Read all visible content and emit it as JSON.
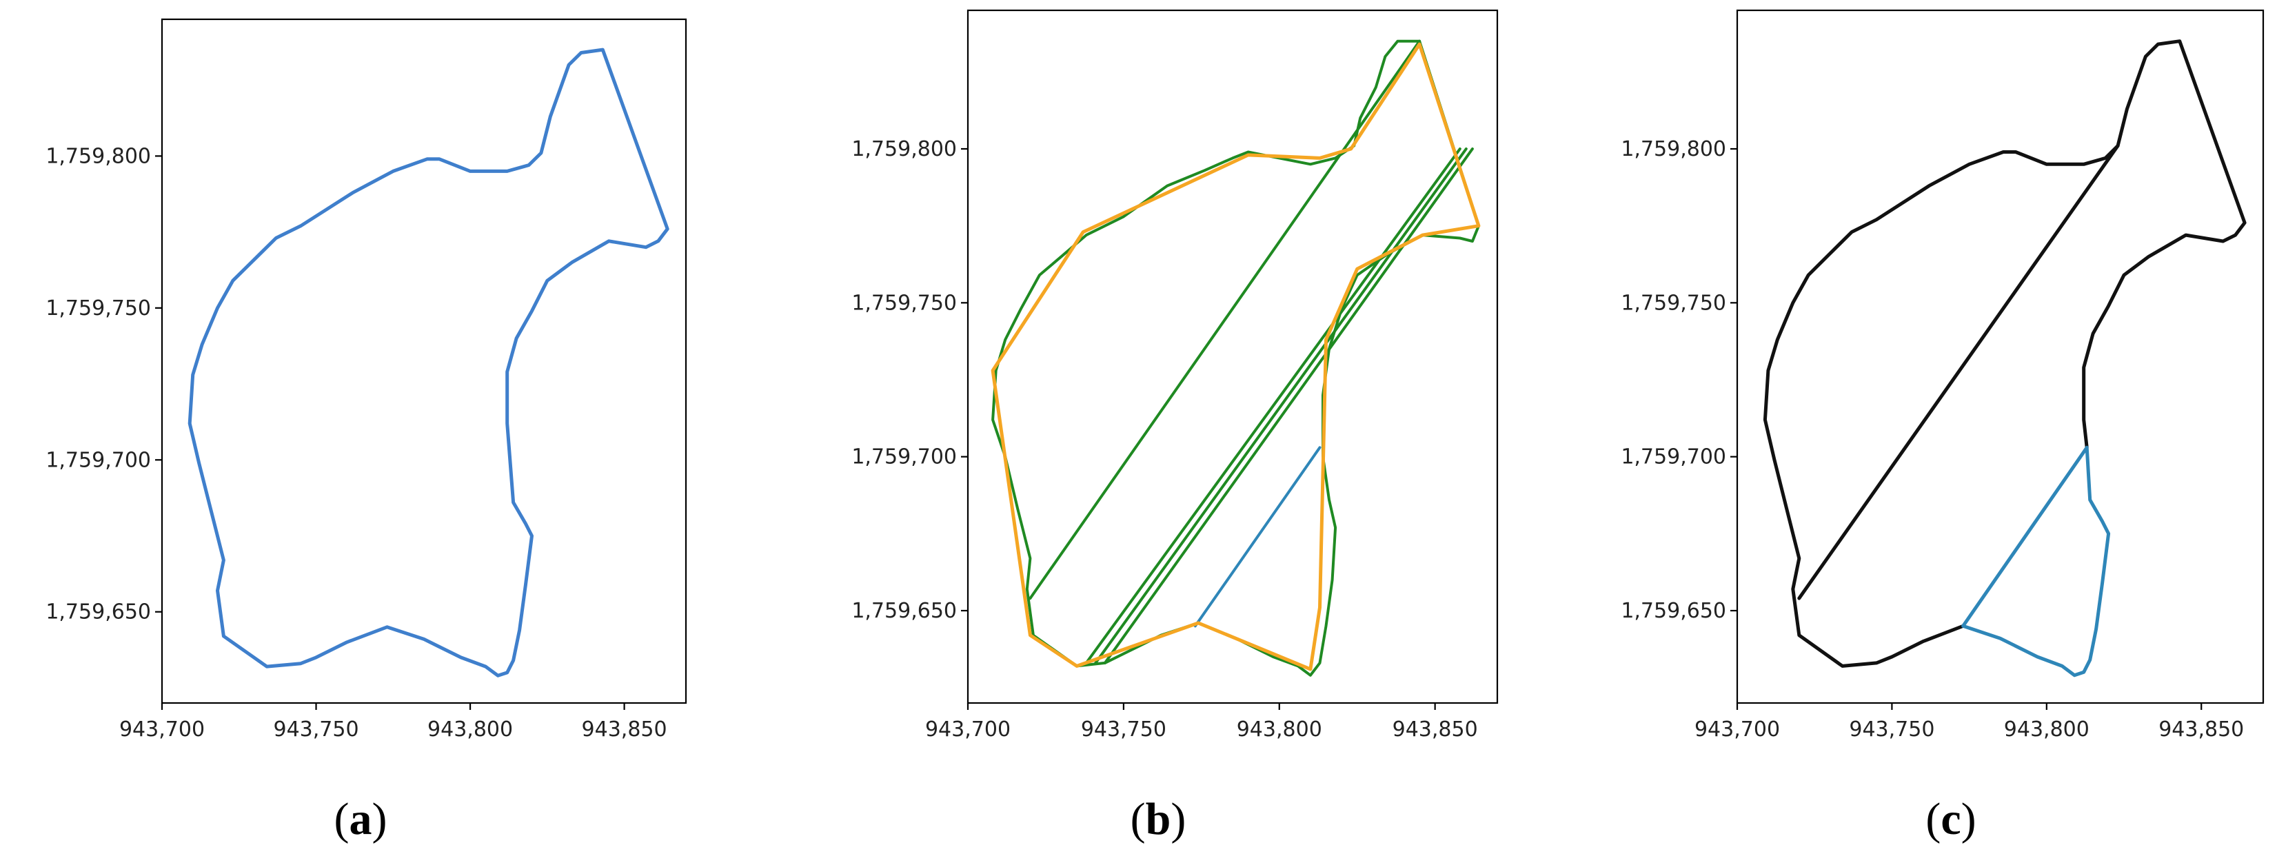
{
  "chart_data": [
    {
      "type": "line",
      "panel_label": "a",
      "xlim": [
        943700,
        943870
      ],
      "ylim": [
        1759620,
        1759845
      ],
      "x_ticks": [
        943700,
        943750,
        943800,
        943850
      ],
      "y_ticks": [
        1759650,
        1759700,
        1759750,
        1759800
      ],
      "x_tick_labels": [
        "943,700",
        "943,750",
        "943,800",
        "943,850"
      ],
      "y_tick_labels": [
        "1,759,650",
        "1,759,700",
        "1,759,750",
        "1,759,800"
      ],
      "series": [
        {
          "color": "#3f7fcc",
          "width": 5,
          "points": [
            [
              943843,
              1759835
            ],
            [
              943836,
              1759834
            ],
            [
              943832,
              1759830
            ],
            [
              943826,
              1759813
            ],
            [
              943823,
              1759801
            ],
            [
              943819,
              1759797
            ],
            [
              943812,
              1759795
            ],
            [
              943800,
              1759795
            ],
            [
              943790,
              1759799
            ],
            [
              943786,
              1759799
            ],
            [
              943775,
              1759795
            ],
            [
              943762,
              1759788
            ],
            [
              943745,
              1759777
            ],
            [
              943737,
              1759773
            ],
            [
              943730,
              1759766
            ],
            [
              943723,
              1759759
            ],
            [
              943718,
              1759750
            ],
            [
              943713,
              1759738
            ],
            [
              943710,
              1759728
            ],
            [
              943709,
              1759712
            ],
            [
              943712,
              1759699
            ],
            [
              943716,
              1759683
            ],
            [
              943720,
              1759667
            ],
            [
              943718,
              1759657
            ],
            [
              943720,
              1759642
            ],
            [
              943734,
              1759632
            ],
            [
              943745,
              1759633
            ],
            [
              943750,
              1759635
            ],
            [
              943760,
              1759640
            ],
            [
              943773,
              1759645
            ],
            [
              943785,
              1759641
            ],
            [
              943797,
              1759635
            ],
            [
              943805,
              1759632
            ],
            [
              943809,
              1759629
            ],
            [
              943812,
              1759630
            ],
            [
              943814,
              1759634
            ],
            [
              943816,
              1759644
            ],
            [
              943818,
              1759659
            ],
            [
              943820,
              1759675
            ],
            [
              943818,
              1759679
            ],
            [
              943814,
              1759686
            ],
            [
              943812,
              1759712
            ],
            [
              943812,
              1759729
            ],
            [
              943815,
              1759740
            ],
            [
              943820,
              1759749
            ],
            [
              943825,
              1759759
            ],
            [
              943833,
              1759765
            ],
            [
              943845,
              1759772
            ],
            [
              943857,
              1759770
            ],
            [
              943861,
              1759772
            ],
            [
              943864,
              1759776
            ],
            [
              943843,
              1759835
            ]
          ]
        }
      ]
    },
    {
      "type": "line",
      "panel_label": "b",
      "xlim": [
        943700,
        943870
      ],
      "ylim": [
        1759620,
        1759845
      ],
      "x_ticks": [
        943700,
        943750,
        943800,
        943850
      ],
      "y_ticks": [
        1759650,
        1759700,
        1759750,
        1759800
      ],
      "x_tick_labels": [
        "943,700",
        "943,750",
        "943,800",
        "943,850"
      ],
      "y_tick_labels": [
        "1,759,650",
        "1,759,700",
        "1,759,750",
        "1,759,800"
      ],
      "series": [
        {
          "color": "#1f8a22",
          "width": 4,
          "points": [
            [
              943845,
              1759835
            ],
            [
              943838,
              1759835
            ],
            [
              943834,
              1759830
            ],
            [
              943831,
              1759820
            ],
            [
              943826,
              1759810
            ],
            [
              943824,
              1759801
            ],
            [
              943818,
              1759797
            ],
            [
              943810,
              1759795
            ],
            [
              943800,
              1759797
            ],
            [
              943790,
              1759799
            ],
            [
              943785,
              1759797
            ],
            [
              943776,
              1759793
            ],
            [
              943764,
              1759788
            ],
            [
              943750,
              1759778
            ],
            [
              943738,
              1759772
            ],
            [
              943730,
              1759765
            ],
            [
              943723,
              1759759
            ],
            [
              943717,
              1759748
            ],
            [
              943712,
              1759738
            ],
            [
              943709,
              1759728
            ],
            [
              943708,
              1759712
            ],
            [
              943712,
              1759700
            ],
            [
              943716,
              1759683
            ],
            [
              943720,
              1759667
            ],
            [
              943719,
              1759657
            ],
            [
              943721,
              1759642
            ],
            [
              943735,
              1759632
            ],
            [
              943744,
              1759633
            ],
            [
              943752,
              1759637
            ],
            [
              943762,
              1759642
            ],
            [
              943774,
              1759646
            ],
            [
              943786,
              1759641
            ],
            [
              943798,
              1759635
            ],
            [
              943806,
              1759632
            ],
            [
              943810,
              1759629
            ],
            [
              943813,
              1759633
            ],
            [
              943815,
              1759645
            ],
            [
              943817,
              1759660
            ],
            [
              943818,
              1759677
            ],
            [
              943816,
              1759686
            ],
            [
              943814,
              1759700
            ],
            [
              943814,
              1759720
            ],
            [
              943816,
              1759735
            ],
            [
              943820,
              1759748
            ],
            [
              943825,
              1759759
            ],
            [
              943835,
              1759766
            ],
            [
              943846,
              1759772
            ],
            [
              943858,
              1759771
            ],
            [
              943862,
              1759770
            ],
            [
              943864,
              1759775
            ],
            [
              943845,
              1759835
            ]
          ]
        },
        {
          "color": "#1f8a22",
          "width": 4,
          "points": [
            [
              943720,
              1759654
            ],
            [
              943845,
              1759835
            ]
          ]
        },
        {
          "color": "#1f8a22",
          "width": 4,
          "points": [
            [
              943738,
              1759633
            ],
            [
              943858,
              1759800
            ]
          ]
        },
        {
          "color": "#1f8a22",
          "width": 4,
          "points": [
            [
              943741,
              1759633
            ],
            [
              943860,
              1759800
            ]
          ]
        },
        {
          "color": "#1f8a22",
          "width": 4,
          "points": [
            [
              943744,
              1759633
            ],
            [
              943862,
              1759800
            ]
          ]
        },
        {
          "color": "#2e86b8",
          "width": 4,
          "points": [
            [
              943773,
              1759645
            ],
            [
              943813,
              1759703
            ]
          ]
        },
        {
          "color": "#f5a623",
          "width": 5,
          "points": [
            [
              943845,
              1759834
            ],
            [
              943823,
              1759800
            ],
            [
              943813,
              1759797
            ],
            [
              943790,
              1759798
            ],
            [
              943737,
              1759773
            ],
            [
              943708,
              1759728
            ],
            [
              943720,
              1759642
            ],
            [
              943735,
              1759632
            ],
            [
              943774,
              1759646
            ],
            [
              943810,
              1759631
            ],
            [
              943813,
              1759651
            ],
            [
              943815,
              1759738
            ],
            [
              943825,
              1759761
            ],
            [
              943846,
              1759772
            ],
            [
              943864,
              1759775
            ],
            [
              943845,
              1759834
            ]
          ]
        }
      ]
    },
    {
      "type": "line",
      "panel_label": "c",
      "xlim": [
        943700,
        943870
      ],
      "ylim": [
        1759620,
        1759845
      ],
      "x_ticks": [
        943700,
        943750,
        943800,
        943850
      ],
      "y_ticks": [
        1759650,
        1759700,
        1759750,
        1759800
      ],
      "x_tick_labels": [
        "943,700",
        "943,750",
        "943,800",
        "943,850"
      ],
      "y_tick_labels": [
        "1,759,650",
        "1,759,700",
        "1,759,750",
        "1,759,800"
      ],
      "series": [
        {
          "color": "#111111",
          "width": 5,
          "points": [
            [
              943813,
              1759703
            ],
            [
              943812,
              1759712
            ],
            [
              943812,
              1759729
            ],
            [
              943815,
              1759740
            ],
            [
              943820,
              1759749
            ],
            [
              943825,
              1759759
            ],
            [
              943833,
              1759765
            ],
            [
              943845,
              1759772
            ],
            [
              943857,
              1759770
            ],
            [
              943861,
              1759772
            ],
            [
              943864,
              1759776
            ],
            [
              943843,
              1759835
            ],
            [
              943836,
              1759834
            ],
            [
              943832,
              1759830
            ],
            [
              943826,
              1759813
            ],
            [
              943823,
              1759801
            ],
            [
              943819,
              1759797
            ],
            [
              943812,
              1759795
            ],
            [
              943800,
              1759795
            ],
            [
              943790,
              1759799
            ],
            [
              943786,
              1759799
            ],
            [
              943775,
              1759795
            ],
            [
              943762,
              1759788
            ],
            [
              943745,
              1759777
            ],
            [
              943737,
              1759773
            ],
            [
              943730,
              1759766
            ],
            [
              943723,
              1759759
            ],
            [
              943718,
              1759750
            ],
            [
              943713,
              1759738
            ],
            [
              943710,
              1759728
            ],
            [
              943709,
              1759712
            ],
            [
              943712,
              1759699
            ],
            [
              943716,
              1759683
            ],
            [
              943720,
              1759667
            ],
            [
              943718,
              1759657
            ],
            [
              943720,
              1759642
            ],
            [
              943734,
              1759632
            ],
            [
              943745,
              1759633
            ],
            [
              943750,
              1759635
            ],
            [
              943760,
              1759640
            ],
            [
              943773,
              1759645
            ]
          ]
        },
        {
          "color": "#111111",
          "width": 5,
          "points": [
            [
              943720,
              1759654
            ],
            [
              943823,
              1759801
            ]
          ]
        },
        {
          "color": "#2e86b8",
          "width": 5,
          "points": [
            [
              943813,
              1759703
            ],
            [
              943814,
              1759686
            ],
            [
              943818,
              1759679
            ],
            [
              943820,
              1759675
            ],
            [
              943818,
              1759659
            ],
            [
              943816,
              1759644
            ],
            [
              943814,
              1759634
            ],
            [
              943812,
              1759630
            ],
            [
              943809,
              1759629
            ],
            [
              943805,
              1759632
            ],
            [
              943797,
              1759635
            ],
            [
              943785,
              1759641
            ],
            [
              943773,
              1759645
            ],
            [
              943813,
              1759703
            ]
          ]
        }
      ]
    }
  ]
}
